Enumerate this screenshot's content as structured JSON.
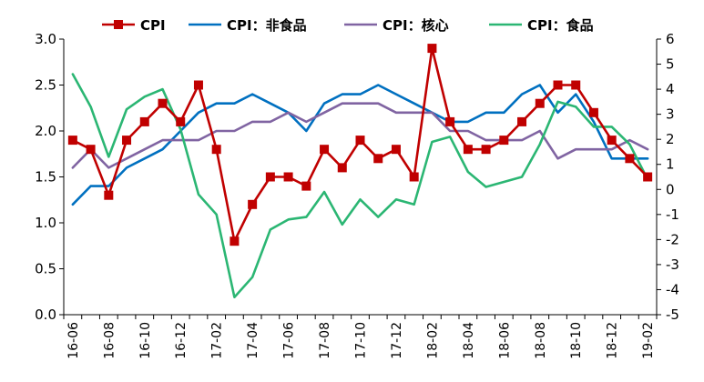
{
  "chart_data": {
    "type": "line",
    "title": "",
    "x": [
      "16-06",
      "16-07",
      "16-08",
      "16-09",
      "16-10",
      "16-11",
      "16-12",
      "17-01",
      "17-02",
      "17-03",
      "17-04",
      "17-05",
      "17-06",
      "17-07",
      "17-08",
      "17-09",
      "17-10",
      "17-11",
      "17-12",
      "18-01",
      "18-02",
      "18-03",
      "18-04",
      "18-05",
      "18-06",
      "18-07",
      "18-08",
      "18-09",
      "18-10",
      "18-11",
      "18-12",
      "19-01",
      "19-02"
    ],
    "x_tick_labels": [
      "16-06",
      "16-08",
      "16-10",
      "16-12",
      "17-02",
      "17-04",
      "17-06",
      "17-08",
      "17-10",
      "17-12",
      "18-02",
      "18-04",
      "18-06",
      "18-08",
      "18-10",
      "18-12",
      "19-02"
    ],
    "left_axis": {
      "ylim": [
        0,
        3.0
      ],
      "ticks": [
        "0.0",
        "0.5",
        "1.0",
        "1.5",
        "2.0",
        "2.5",
        "3.0"
      ]
    },
    "right_axis": {
      "ylim": [
        -5,
        6
      ],
      "ticks": [
        "-5",
        "-4",
        "-3",
        "-2",
        "-1",
        "0",
        "1",
        "2",
        "3",
        "4",
        "5",
        "6"
      ]
    },
    "legend_position": "top",
    "series": [
      {
        "name": "CPI",
        "axis": "left",
        "color": "#C00000",
        "marker": "square",
        "values": [
          1.9,
          1.8,
          1.3,
          1.9,
          2.1,
          2.3,
          2.1,
          2.5,
          1.8,
          0.8,
          1.2,
          1.5,
          1.5,
          1.4,
          1.8,
          1.6,
          1.9,
          1.7,
          1.8,
          1.5,
          2.9,
          2.1,
          1.8,
          1.8,
          1.9,
          2.1,
          2.3,
          2.5,
          2.5,
          2.2,
          1.9,
          1.7,
          1.5
        ]
      },
      {
        "name": "CPI：非食品",
        "axis": "left",
        "color": "#0070C0",
        "values": [
          1.2,
          1.4,
          1.4,
          1.6,
          1.7,
          1.8,
          2.0,
          2.2,
          2.3,
          2.3,
          2.4,
          2.3,
          2.2,
          2.0,
          2.3,
          2.4,
          2.4,
          2.5,
          2.4,
          2.3,
          2.2,
          2.1,
          2.1,
          2.2,
          2.2,
          2.4,
          2.5,
          2.2,
          2.4,
          2.1,
          1.7,
          1.7,
          1.7
        ]
      },
      {
        "name": "CPI：核心",
        "axis": "left",
        "color": "#8064A2",
        "values": [
          1.6,
          1.8,
          1.6,
          1.7,
          1.8,
          1.9,
          1.9,
          1.9,
          2.0,
          2.0,
          2.1,
          2.1,
          2.2,
          2.1,
          2.2,
          2.3,
          2.3,
          2.3,
          2.2,
          2.2,
          2.2,
          2.0,
          2.0,
          1.9,
          1.9,
          1.9,
          2.0,
          1.7,
          1.8,
          1.8,
          1.8,
          1.9,
          1.8
        ]
      },
      {
        "name": "CPI：食品",
        "axis": "right",
        "color": "#2BB673",
        "values": [
          4.6,
          3.3,
          1.3,
          3.2,
          3.7,
          4.0,
          2.4,
          -0.2,
          -1.0,
          -4.3,
          -3.5,
          -1.6,
          -1.2,
          -1.1,
          -0.1,
          -1.4,
          -0.4,
          -1.1,
          -0.4,
          -0.6,
          1.9,
          2.1,
          0.7,
          0.1,
          0.3,
          0.5,
          1.8,
          3.5,
          3.3,
          2.5,
          2.5,
          1.8,
          0.4
        ]
      }
    ]
  }
}
